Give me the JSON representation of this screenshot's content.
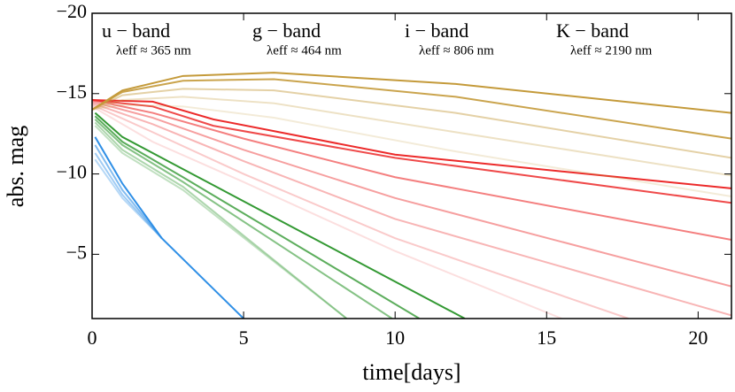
{
  "chart_data": {
    "type": "line",
    "xlabel": "time[days]",
    "ylabel": "abs. mag",
    "xlim": [
      0,
      21.1
    ],
    "ylim": [
      -20,
      -1
    ],
    "inverted_y": true,
    "xticks": [
      0,
      5,
      10,
      15,
      20
    ],
    "yticks": [
      {
        "value": -20,
        "label": "−20"
      },
      {
        "value": -15,
        "label": "−15"
      },
      {
        "value": -10,
        "label": "−10"
      },
      {
        "value": -5,
        "label": "−5"
      }
    ],
    "annotations": [
      {
        "text": "u − band",
        "sub": "λeff ≈ 365 nm",
        "color": "#2f8fe6"
      },
      {
        "text": "g − band",
        "sub": "λeff ≈ 464 nm",
        "color": "#339933"
      },
      {
        "text": "i − band",
        "sub": "λeff ≈ 806 nm",
        "color": "#ec2a2a"
      },
      {
        "text": "K − band",
        "sub": "λeff ≈ 2190 nm",
        "color": "#c49a3a"
      }
    ],
    "series": [
      {
        "color": "#2f8fe6",
        "alpha": 1,
        "x": [
          0.1,
          1,
          2.3,
          5
        ],
        "values": [
          -12.3,
          -9.4,
          -6.0,
          -1
        ]
      },
      {
        "color": "#2f8fe6",
        "alpha": 0.6,
        "x": [
          0.1,
          1,
          2.3
        ],
        "values": [
          -11.8,
          -9.0,
          -6.0
        ]
      },
      {
        "color": "#2f8fe6",
        "alpha": 0.45,
        "x": [
          0.1,
          1,
          2.3
        ],
        "values": [
          -11.3,
          -8.7,
          -6.0
        ]
      },
      {
        "color": "#2f8fe6",
        "alpha": 0.35,
        "x": [
          0.1,
          1,
          2.3
        ],
        "values": [
          -10.9,
          -8.5,
          -6.0
        ]
      },
      {
        "color": "#339933",
        "alpha": 1,
        "x": [
          0.1,
          1,
          3,
          12.3
        ],
        "values": [
          -13.8,
          -12.3,
          -10.3,
          -1
        ]
      },
      {
        "color": "#339933",
        "alpha": 0.8,
        "x": [
          0.1,
          1,
          3,
          10.8
        ],
        "values": [
          -13.6,
          -12.0,
          -9.8,
          -1
        ]
      },
      {
        "color": "#339933",
        "alpha": 0.6,
        "x": [
          0.1,
          1,
          3,
          9.9
        ],
        "values": [
          -13.4,
          -11.8,
          -9.5,
          -1
        ]
      },
      {
        "color": "#339933",
        "alpha": 0.4,
        "x": [
          0.1,
          1,
          3,
          8.4
        ],
        "values": [
          -13.2,
          -11.5,
          -9.2,
          -1
        ]
      },
      {
        "color": "#339933",
        "alpha": 0.3,
        "x": [
          0.1,
          1,
          3,
          8.4
        ],
        "values": [
          -13.0,
          -11.3,
          -9.0,
          -1
        ]
      },
      {
        "color": "#ec2a2a",
        "alpha": 1,
        "x": [
          0,
          2,
          4,
          10,
          21.1
        ],
        "values": [
          -14.6,
          -14.5,
          -13.4,
          -11.2,
          -9.1
        ]
      },
      {
        "color": "#ec2a2a",
        "alpha": 0.85,
        "x": [
          0,
          2,
          4,
          10,
          21.1
        ],
        "values": [
          -14.6,
          -14.2,
          -13.0,
          -11.0,
          -8.2
        ]
      },
      {
        "color": "#ec2a2a",
        "alpha": 0.6,
        "x": [
          0,
          2,
          5,
          10,
          21.1
        ],
        "values": [
          -14.6,
          -13.8,
          -12.2,
          -9.8,
          -5.9
        ]
      },
      {
        "color": "#ec2a2a",
        "alpha": 0.45,
        "x": [
          0,
          2,
          5,
          10,
          21.1
        ],
        "values": [
          -14.5,
          -13.5,
          -11.5,
          -8.5,
          -3.0
        ]
      },
      {
        "color": "#ec2a2a",
        "alpha": 0.35,
        "x": [
          0,
          2,
          5,
          10,
          21.1
        ],
        "values": [
          -14.4,
          -13.1,
          -10.8,
          -7.2,
          -1.2
        ]
      },
      {
        "color": "#ec2a2a",
        "alpha": 0.25,
        "x": [
          0,
          2,
          5,
          10,
          17.7
        ],
        "values": [
          -14.3,
          -12.6,
          -10.0,
          -6.0,
          -1
        ]
      },
      {
        "color": "#ec2a2a",
        "alpha": 0.15,
        "x": [
          0,
          2,
          5,
          10,
          15.5
        ],
        "values": [
          -14.2,
          -12.0,
          -9.5,
          -5.2,
          -1
        ]
      },
      {
        "color": "#c49a3a",
        "alpha": 1,
        "x": [
          0,
          1,
          3,
          6,
          12,
          21.1
        ],
        "values": [
          -14.0,
          -15.2,
          -16.1,
          -16.3,
          -15.6,
          -13.8
        ]
      },
      {
        "color": "#c49a3a",
        "alpha": 0.9,
        "x": [
          0,
          1,
          3,
          6,
          12,
          21.1
        ],
        "values": [
          -14.0,
          -15.1,
          -15.8,
          -15.9,
          -14.8,
          -12.2
        ]
      },
      {
        "color": "#c49a3a",
        "alpha": 0.45,
        "x": [
          0,
          1,
          3,
          6,
          12,
          21.1
        ],
        "values": [
          -14.0,
          -14.9,
          -15.3,
          -15.2,
          -13.8,
          -11.0
        ]
      },
      {
        "color": "#c49a3a",
        "alpha": 0.3,
        "x": [
          0,
          1,
          3,
          6,
          12,
          21.1
        ],
        "values": [
          -14.0,
          -14.6,
          -14.8,
          -14.4,
          -12.6,
          -9.9
        ]
      },
      {
        "color": "#c49a3a",
        "alpha": 0.2,
        "x": [
          0,
          1,
          3,
          6,
          12,
          21.1
        ],
        "values": [
          -14.0,
          -14.3,
          -14.2,
          -13.5,
          -11.4,
          -8.6
        ]
      }
    ]
  }
}
